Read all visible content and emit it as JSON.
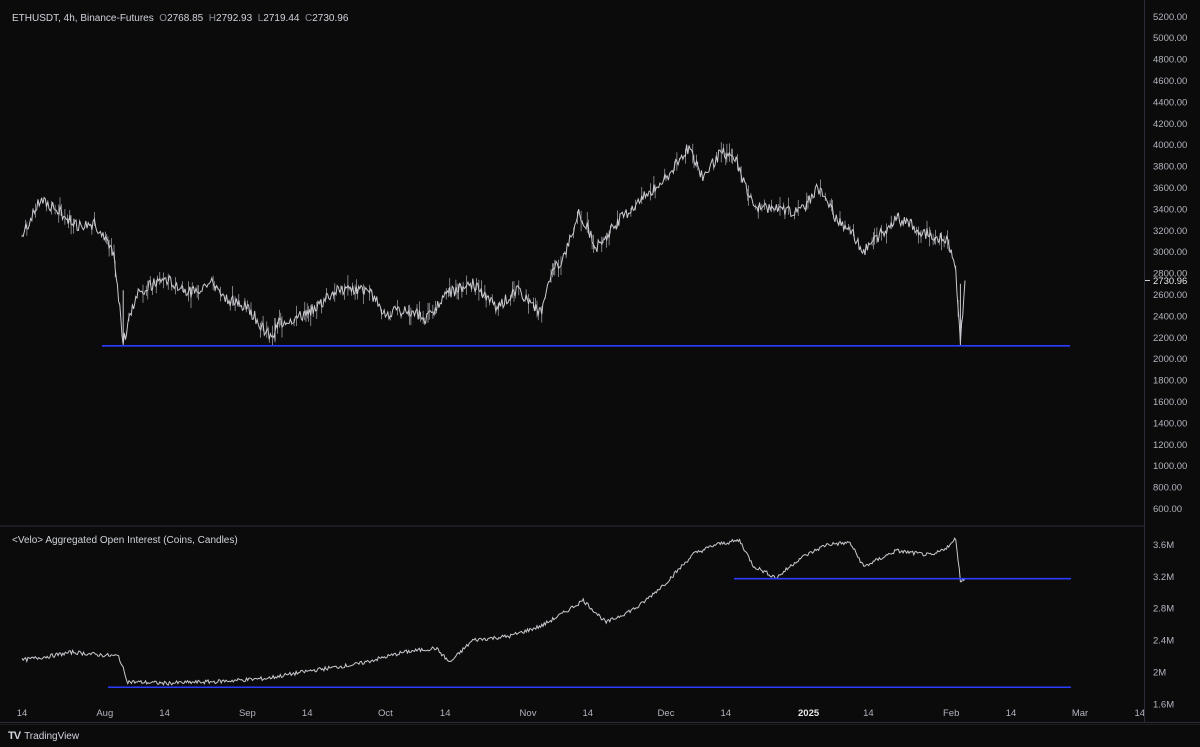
{
  "header": {
    "symbol": "ETHUSDT, 4h, Binance-Futures",
    "open_key": "O",
    "open": "2768.85",
    "high_key": "H",
    "high": "2792.93",
    "low_key": "L",
    "low": "2719.44",
    "close_key": "C",
    "close": "2730.96"
  },
  "oi_panel": {
    "title": "<Velo> Aggregated Open Interest (Coins, Candles)"
  },
  "footer": {
    "brand": "TradingView"
  },
  "colors": {
    "background": "#0b0b0c",
    "candles": "#c9cacf",
    "support_line": "#2b3cff",
    "axis_text": "#b2b5be"
  },
  "chart_data": [
    {
      "type": "line",
      "title": "ETHUSDT, 4h, Binance-Futures",
      "x_ticks": [
        "14",
        "Aug",
        "14",
        "Sep",
        "14",
        "Oct",
        "14",
        "Nov",
        "14",
        "Dec",
        "14",
        "2025",
        "14",
        "Feb",
        "14",
        "Mar",
        "14"
      ],
      "y_ticks": [
        "5200.00",
        "5000.00",
        "4800.00",
        "4600.00",
        "4400.00",
        "4200.00",
        "4000.00",
        "3800.00",
        "3600.00",
        "3400.00",
        "3200.00",
        "3000.00",
        "2800.00",
        "2600.00",
        "2400.00",
        "2200.00",
        "2000.00",
        "1800.00",
        "1600.00",
        "1400.00",
        "1200.00",
        "1000.00",
        "800.00",
        "600.00"
      ],
      "ylim": [
        530,
        5240
      ],
      "last_price_label": "2730.96",
      "series": [
        {
          "x": [
            "2024-07-14",
            "2024-07-18",
            "2024-07-22",
            "2024-07-26",
            "2024-07-30",
            "2024-08-03",
            "2024-08-05",
            "2024-08-08",
            "2024-08-14",
            "2024-08-20",
            "2024-08-24",
            "2024-08-28",
            "2024-09-01",
            "2024-09-06",
            "2024-09-08",
            "2024-09-14",
            "2024-09-20",
            "2024-09-27",
            "2024-10-01",
            "2024-10-06",
            "2024-10-10",
            "2024-10-15",
            "2024-10-20",
            "2024-10-25",
            "2024-10-30",
            "2024-11-04",
            "2024-11-06",
            "2024-11-09",
            "2024-11-12",
            "2024-11-16",
            "2024-11-21",
            "2024-11-26",
            "2024-12-01",
            "2024-12-06",
            "2024-12-09",
            "2024-12-13",
            "2024-12-16",
            "2024-12-20",
            "2024-12-25",
            "2024-12-30",
            "2025-01-03",
            "2025-01-07",
            "2025-01-10",
            "2025-01-13",
            "2025-01-20",
            "2025-01-27",
            "2025-01-31",
            "2025-02-02",
            "2025-02-03",
            "2025-02-04"
          ],
          "values": [
            3150,
            3480,
            3380,
            3250,
            3260,
            2950,
            2150,
            2620,
            2750,
            2620,
            2730,
            2550,
            2480,
            2200,
            2340,
            2420,
            2630,
            2650,
            2420,
            2450,
            2380,
            2620,
            2700,
            2480,
            2640,
            2420,
            2800,
            2960,
            3380,
            3050,
            3300,
            3500,
            3680,
            3980,
            3700,
            3930,
            3880,
            3420,
            3400,
            3360,
            3600,
            3310,
            3200,
            3000,
            3320,
            3160,
            3120,
            2820,
            2150,
            2730.96
          ]
        }
      ],
      "support_level": 2120
    },
    {
      "type": "line",
      "title": "<Velo> Aggregated Open Interest (Coins, Candles)",
      "y_ticks": [
        "3.6M",
        "3.2M",
        "2.8M",
        "2.4M",
        "2M",
        "1.6M"
      ],
      "ylim": [
        1.45,
        3.78
      ],
      "series": [
        {
          "x": [
            "2024-07-14",
            "2024-07-20",
            "2024-07-25",
            "2024-07-30",
            "2024-08-04",
            "2024-08-06",
            "2024-08-14",
            "2024-08-25",
            "2024-09-05",
            "2024-09-15",
            "2024-09-25",
            "2024-10-05",
            "2024-10-12",
            "2024-10-15",
            "2024-10-20",
            "2024-10-28",
            "2024-11-04",
            "2024-11-09",
            "2024-11-13",
            "2024-11-18",
            "2024-11-25",
            "2024-12-01",
            "2024-12-07",
            "2024-12-12",
            "2024-12-17",
            "2024-12-20",
            "2024-12-25",
            "2024-12-30",
            "2025-01-05",
            "2025-01-10",
            "2025-01-13",
            "2025-01-20",
            "2025-01-28",
            "2025-02-01",
            "2025-02-02",
            "2025-02-03",
            "2025-02-04"
          ],
          "values": [
            2.15,
            2.2,
            2.25,
            2.22,
            2.2,
            1.88,
            1.86,
            1.88,
            1.92,
            2.02,
            2.1,
            2.25,
            2.3,
            2.12,
            2.4,
            2.45,
            2.58,
            2.75,
            2.9,
            2.62,
            2.82,
            3.12,
            3.48,
            3.6,
            3.65,
            3.33,
            3.18,
            3.42,
            3.6,
            3.62,
            3.32,
            3.52,
            3.46,
            3.6,
            3.68,
            3.14,
            3.18
          ]
        }
      ],
      "support_levels": [
        3.17,
        1.81
      ]
    }
  ]
}
